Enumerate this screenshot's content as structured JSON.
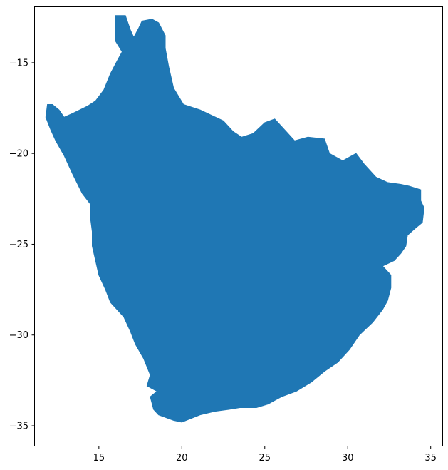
{
  "chart_data": {
    "type": "map",
    "title": "",
    "xlabel": "",
    "ylabel": "",
    "xlim": [
      11.1,
      35.7
    ],
    "ylim": [
      -36.1,
      -11.9
    ],
    "x_ticks": [
      {
        "value": 15,
        "label": "15"
      },
      {
        "value": 20,
        "label": "20"
      },
      {
        "value": 25,
        "label": "25"
      },
      {
        "value": 30,
        "label": "30"
      },
      {
        "value": 35,
        "label": "35"
      }
    ],
    "y_ticks": [
      {
        "value": -15,
        "label": "−15"
      },
      {
        "value": -20,
        "label": "−20"
      },
      {
        "value": -25,
        "label": "−25"
      },
      {
        "value": -30,
        "label": "−30"
      },
      {
        "value": -35,
        "label": "−35"
      }
    ],
    "grid": false,
    "region": {
      "fill_color": "#1f77b4",
      "outline": [
        [
          16.0,
          -12.4
        ],
        [
          16.6,
          -12.4
        ],
        [
          16.9,
          -13.2
        ],
        [
          17.1,
          -13.6
        ],
        [
          17.4,
          -13.1
        ],
        [
          17.6,
          -12.7
        ],
        [
          18.2,
          -12.6
        ],
        [
          18.6,
          -12.8
        ],
        [
          19.0,
          -13.5
        ],
        [
          19.0,
          -14.2
        ],
        [
          19.2,
          -15.2
        ],
        [
          19.5,
          -16.4
        ],
        [
          20.1,
          -17.3
        ],
        [
          21.1,
          -17.6
        ],
        [
          22.5,
          -18.2
        ],
        [
          23.1,
          -18.8
        ],
        [
          23.6,
          -19.1
        ],
        [
          24.3,
          -18.9
        ],
        [
          25.0,
          -18.3
        ],
        [
          25.6,
          -18.1
        ],
        [
          26.3,
          -18.8
        ],
        [
          26.8,
          -19.3
        ],
        [
          27.6,
          -19.1
        ],
        [
          28.6,
          -19.2
        ],
        [
          28.9,
          -20.0
        ],
        [
          29.7,
          -20.4
        ],
        [
          30.5,
          -20.0
        ],
        [
          31.0,
          -20.6
        ],
        [
          31.7,
          -21.3
        ],
        [
          32.4,
          -21.6
        ],
        [
          33.2,
          -21.7
        ],
        [
          33.7,
          -21.8
        ],
        [
          34.4,
          -22.0
        ],
        [
          34.4,
          -22.6
        ],
        [
          34.6,
          -23.0
        ],
        [
          34.5,
          -23.8
        ],
        [
          34.1,
          -24.1
        ],
        [
          33.6,
          -24.5
        ],
        [
          33.5,
          -25.1
        ],
        [
          33.2,
          -25.5
        ],
        [
          32.8,
          -25.9
        ],
        [
          32.1,
          -26.2
        ],
        [
          32.6,
          -26.7
        ],
        [
          32.6,
          -27.4
        ],
        [
          32.4,
          -28.1
        ],
        [
          32.1,
          -28.6
        ],
        [
          31.5,
          -29.3
        ],
        [
          30.7,
          -30.0
        ],
        [
          30.1,
          -30.8
        ],
        [
          29.4,
          -31.5
        ],
        [
          28.6,
          -32.0
        ],
        [
          27.8,
          -32.6
        ],
        [
          26.9,
          -33.1
        ],
        [
          26.0,
          -33.4
        ],
        [
          25.2,
          -33.8
        ],
        [
          24.5,
          -34.0
        ],
        [
          23.5,
          -34.0
        ],
        [
          22.8,
          -34.1
        ],
        [
          22.0,
          -34.2
        ],
        [
          21.1,
          -34.4
        ],
        [
          20.0,
          -34.8
        ],
        [
          19.5,
          -34.7
        ],
        [
          18.6,
          -34.4
        ],
        [
          18.3,
          -34.1
        ],
        [
          18.1,
          -33.4
        ],
        [
          18.5,
          -33.1
        ],
        [
          17.9,
          -32.8
        ],
        [
          18.1,
          -32.2
        ],
        [
          17.7,
          -31.3
        ],
        [
          17.2,
          -30.5
        ],
        [
          16.9,
          -29.8
        ],
        [
          16.5,
          -29.0
        ],
        [
          15.7,
          -28.2
        ],
        [
          15.4,
          -27.5
        ],
        [
          15.0,
          -26.7
        ],
        [
          14.8,
          -25.9
        ],
        [
          14.6,
          -25.1
        ],
        [
          14.6,
          -24.3
        ],
        [
          14.5,
          -23.6
        ],
        [
          14.5,
          -22.8
        ],
        [
          14.0,
          -22.2
        ],
        [
          13.4,
          -21.1
        ],
        [
          12.9,
          -20.1
        ],
        [
          12.4,
          -19.3
        ],
        [
          12.1,
          -18.7
        ],
        [
          11.8,
          -18.0
        ],
        [
          11.9,
          -17.3
        ],
        [
          12.2,
          -17.3
        ],
        [
          12.6,
          -17.6
        ],
        [
          12.9,
          -18.0
        ],
        [
          13.4,
          -17.8
        ],
        [
          14.3,
          -17.4
        ],
        [
          14.8,
          -17.1
        ],
        [
          15.3,
          -16.5
        ],
        [
          15.7,
          -15.6
        ],
        [
          16.1,
          -14.9
        ],
        [
          16.4,
          -14.4
        ],
        [
          16.0,
          -13.8
        ],
        [
          16.0,
          -13.1
        ]
      ]
    }
  }
}
